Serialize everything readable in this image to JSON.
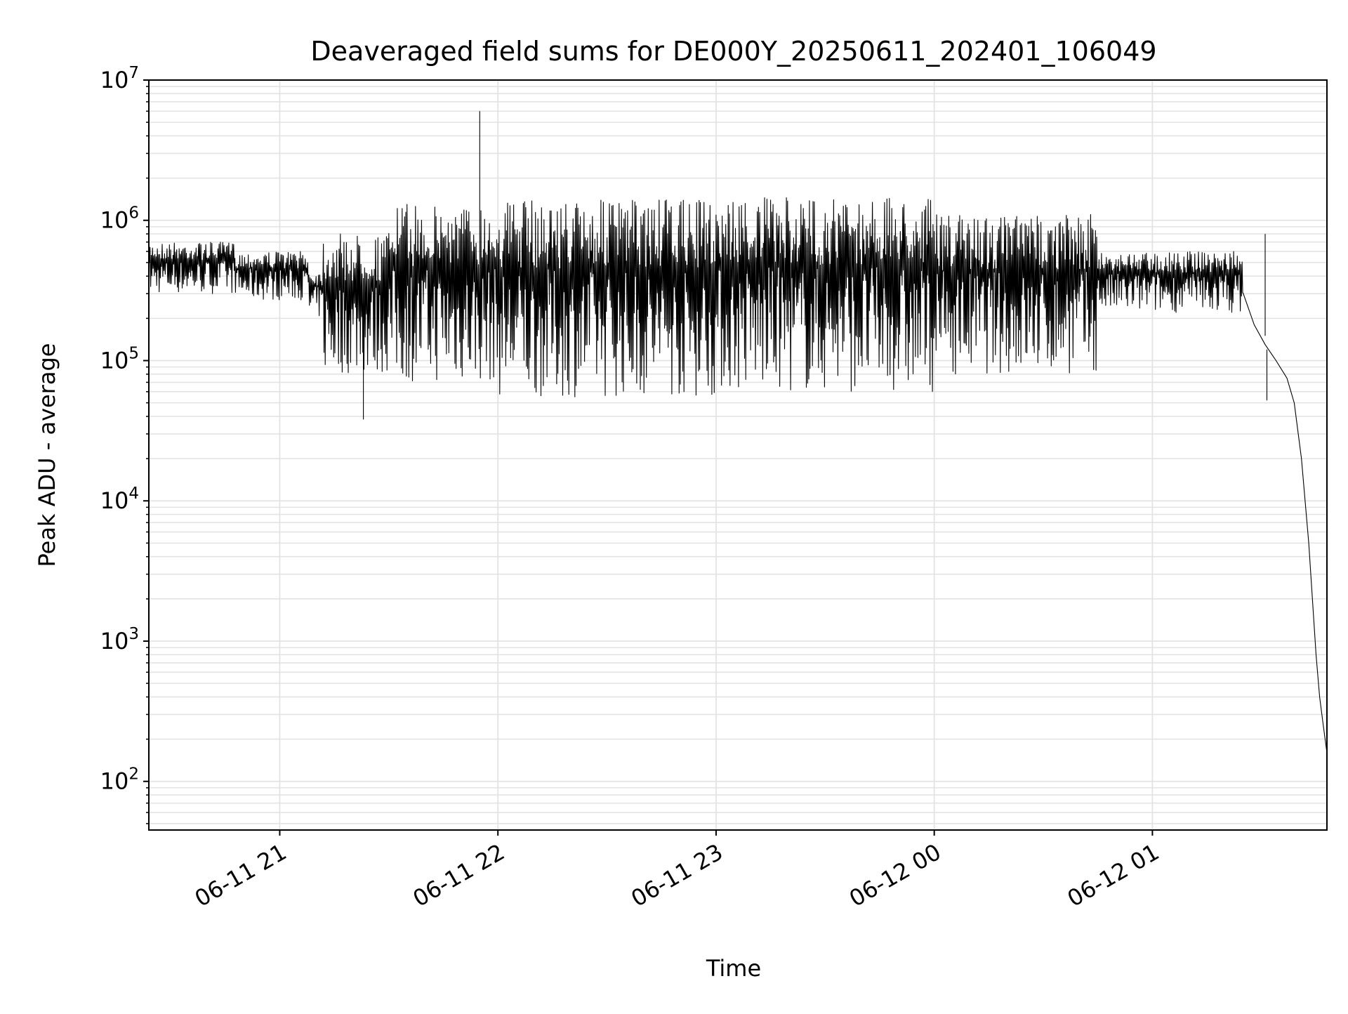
{
  "chart_data": {
    "type": "line",
    "title": "Deaveraged field sums for DE000Y_20250611_202401_106049",
    "xlabel": "Time",
    "ylabel": "Peak ADU - average",
    "y_scale": "log",
    "xlim": [
      "2025-06-11T20:24:00",
      "2025-06-12T01:48:00"
    ],
    "ylim": [
      45,
      10000000
    ],
    "grid": true,
    "line_color": "#000000",
    "grid_color": "#e3e3e3",
    "x_ticks": [
      {
        "value": "2025-06-11T21:00:00",
        "label": "06-11 21"
      },
      {
        "value": "2025-06-11T22:00:00",
        "label": "06-11 22"
      },
      {
        "value": "2025-06-11T23:00:00",
        "label": "06-11 23"
      },
      {
        "value": "2025-06-12T00:00:00",
        "label": "06-12 00"
      },
      {
        "value": "2025-06-12T01:00:00",
        "label": "06-12 01"
      }
    ],
    "y_ticks": [
      {
        "value": 100,
        "base": "10",
        "exp": "2"
      },
      {
        "value": 1000,
        "base": "10",
        "exp": "3"
      },
      {
        "value": 10000,
        "base": "10",
        "exp": "4"
      },
      {
        "value": 100000,
        "base": "10",
        "exp": "5"
      },
      {
        "value": 1000000,
        "base": "10",
        "exp": "6"
      },
      {
        "value": 10000000,
        "base": "10",
        "exp": "7"
      }
    ],
    "series": [
      {
        "segments": [
          {
            "start": "2025-06-11T20:24:00",
            "end": "2025-06-11T20:48:00",
            "low": 300000,
            "high": 700000
          },
          {
            "start": "2025-06-11T20:48:00",
            "end": "2025-06-11T21:08:00",
            "low": 270000,
            "high": 600000
          },
          {
            "start": "2025-06-11T21:08:00",
            "end": "2025-06-11T21:12:00",
            "low": 200000,
            "high": 450000
          },
          {
            "start": "2025-06-11T21:12:00",
            "end": "2025-06-11T21:30:00",
            "low": 80000,
            "high": 800000
          },
          {
            "start": "2025-06-11T21:30:00",
            "end": "2025-06-11T22:00:00",
            "low": 70000,
            "high": 1300000
          },
          {
            "start": "2025-06-11T22:00:00",
            "end": "2025-06-11T23:00:00",
            "low": 55000,
            "high": 1400000
          },
          {
            "start": "2025-06-11T23:00:00",
            "end": "2025-06-12T00:00:00",
            "low": 60000,
            "high": 1450000
          },
          {
            "start": "2025-06-12T00:00:00",
            "end": "2025-06-12T00:45:00",
            "low": 80000,
            "high": 1100000
          },
          {
            "start": "2025-06-12T00:45:00",
            "end": "2025-06-12T01:25:00",
            "low": 220000,
            "high": 600000
          }
        ],
        "points": [
          {
            "x": "2025-06-12T01:25:00",
            "y": 300000
          },
          {
            "x": "2025-06-12T01:28:00",
            "y": 180000
          },
          {
            "x": "2025-06-12T01:31:00",
            "y": 130000
          },
          {
            "x": "2025-06-12T01:34:00",
            "y": 100000
          },
          {
            "x": "2025-06-12T01:37:00",
            "y": 75000
          },
          {
            "x": "2025-06-12T01:39:00",
            "y": 50000
          },
          {
            "x": "2025-06-12T01:41:00",
            "y": 20000
          },
          {
            "x": "2025-06-12T01:43:00",
            "y": 5000
          },
          {
            "x": "2025-06-12T01:45:00",
            "y": 800
          },
          {
            "x": "2025-06-12T01:46:00",
            "y": 400
          },
          {
            "x": "2025-06-12T01:47:00",
            "y": 250
          },
          {
            "x": "2025-06-12T01:48:00",
            "y": 160
          }
        ],
        "spikes": [
          {
            "x": "2025-06-11T21:55:00",
            "y": 6000000,
            "base": 300000
          },
          {
            "x": "2025-06-11T21:23:00",
            "y": 38000,
            "base": 150000
          },
          {
            "x": "2025-06-12T01:31:00",
            "y": 800000,
            "base": 150000
          },
          {
            "x": "2025-06-12T01:31:30",
            "y": 52000,
            "base": 120000
          }
        ]
      }
    ]
  }
}
